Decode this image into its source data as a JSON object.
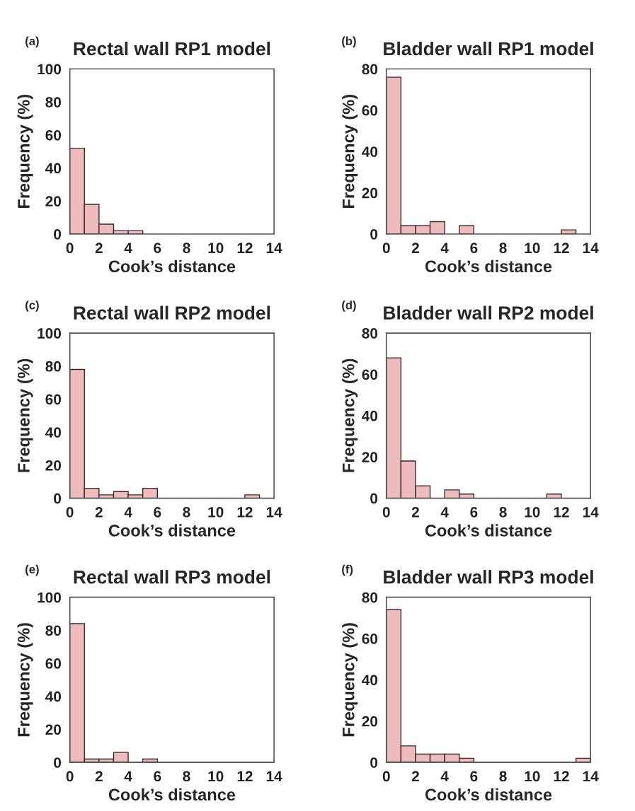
{
  "chart_data": [
    {
      "type": "histogram",
      "title": "Rectal wall RP1 model",
      "annotations": [
        "(a)"
      ],
      "xlabel": "Cook’s distance",
      "ylabel": "Frequency (%)",
      "bins": [
        0,
        1,
        2,
        3,
        4,
        5,
        6,
        7,
        8,
        9,
        10,
        11,
        12,
        13,
        14
      ],
      "values": [
        52,
        18,
        6,
        2,
        2,
        0,
        0,
        0,
        0,
        0,
        0,
        0,
        0,
        0
      ],
      "color": "#efbcbe",
      "xlim": [
        0,
        14
      ],
      "xticks": [
        0,
        2,
        4,
        6,
        8,
        10,
        12,
        14
      ],
      "ylim": [
        0,
        100
      ],
      "yticks": [
        0,
        20,
        40,
        60,
        80,
        100
      ],
      "grid": false
    },
    {
      "type": "histogram",
      "title": "Bladder wall RP1 model",
      "annotations": [
        "(b)"
      ],
      "xlabel": "Cook’s distance",
      "ylabel": "Frequency (%)",
      "bins": [
        0,
        1,
        2,
        3,
        4,
        5,
        6,
        7,
        8,
        9,
        10,
        11,
        12,
        13,
        14
      ],
      "values": [
        76,
        4,
        4,
        6,
        0,
        4,
        0,
        0,
        0,
        0,
        0,
        0,
        2,
        0
      ],
      "color": "#efbcbe",
      "xlim": [
        0,
        14
      ],
      "xticks": [
        0,
        2,
        4,
        6,
        8,
        10,
        12,
        14
      ],
      "ylim": [
        0,
        80
      ],
      "yticks": [
        0,
        20,
        40,
        60,
        80
      ],
      "grid": false
    },
    {
      "type": "histogram",
      "title": "Rectal wall RP2 model",
      "annotations": [
        "(c)"
      ],
      "xlabel": "Cook’s distance",
      "ylabel": "Frequency (%)",
      "bins": [
        0,
        1,
        2,
        3,
        4,
        5,
        6,
        7,
        8,
        9,
        10,
        11,
        12,
        13,
        14
      ],
      "values": [
        78,
        6,
        2,
        4,
        2,
        6,
        0,
        0,
        0,
        0,
        0,
        0,
        2,
        0
      ],
      "color": "#efbcbe",
      "xlim": [
        0,
        14
      ],
      "xticks": [
        0,
        2,
        4,
        6,
        8,
        10,
        12,
        14
      ],
      "ylim": [
        0,
        100
      ],
      "yticks": [
        0,
        20,
        40,
        60,
        80,
        100
      ],
      "grid": false
    },
    {
      "type": "histogram",
      "title": "Bladder wall RP2 model",
      "annotations": [
        "(d)"
      ],
      "xlabel": "Cook’s distance",
      "ylabel": "Frequency (%)",
      "bins": [
        0,
        1,
        2,
        3,
        4,
        5,
        6,
        7,
        8,
        9,
        10,
        11,
        12,
        13,
        14
      ],
      "values": [
        68,
        18,
        6,
        0,
        4,
        2,
        0,
        0,
        0,
        0,
        0,
        2,
        0,
        0
      ],
      "color": "#efbcbe",
      "xlim": [
        0,
        14
      ],
      "xticks": [
        0,
        2,
        4,
        6,
        8,
        10,
        12,
        14
      ],
      "ylim": [
        0,
        80
      ],
      "yticks": [
        0,
        20,
        40,
        60,
        80
      ],
      "grid": false
    },
    {
      "type": "histogram",
      "title": "Rectal wall RP3 model",
      "annotations": [
        "(e)"
      ],
      "xlabel": "Cook’s distance",
      "ylabel": "Frequency (%)",
      "bins": [
        0,
        1,
        2,
        3,
        4,
        5,
        6,
        7,
        8,
        9,
        10,
        11,
        12,
        13,
        14
      ],
      "values": [
        84,
        2,
        2,
        6,
        0,
        2,
        0,
        0,
        0,
        0,
        0,
        0,
        0,
        0
      ],
      "color": "#efbcbe",
      "xlim": [
        0,
        14
      ],
      "xticks": [
        0,
        2,
        4,
        6,
        8,
        10,
        12,
        14
      ],
      "ylim": [
        0,
        100
      ],
      "yticks": [
        0,
        20,
        40,
        60,
        80,
        100
      ],
      "grid": false
    },
    {
      "type": "histogram",
      "title": "Bladder wall RP3 model",
      "annotations": [
        "(f)"
      ],
      "xlabel": "Cook’s distance",
      "ylabel": "Frequency (%)",
      "bins": [
        0,
        1,
        2,
        3,
        4,
        5,
        6,
        7,
        8,
        9,
        10,
        11,
        12,
        13,
        14
      ],
      "values": [
        74,
        8,
        4,
        4,
        4,
        2,
        0,
        0,
        0,
        0,
        0,
        0,
        0,
        2
      ],
      "color": "#efbcbe",
      "xlim": [
        0,
        14
      ],
      "xticks": [
        0,
        2,
        4,
        6,
        8,
        10,
        12,
        14
      ],
      "ylim": [
        0,
        80
      ],
      "yticks": [
        0,
        20,
        40,
        60,
        80
      ],
      "grid": false
    }
  ]
}
